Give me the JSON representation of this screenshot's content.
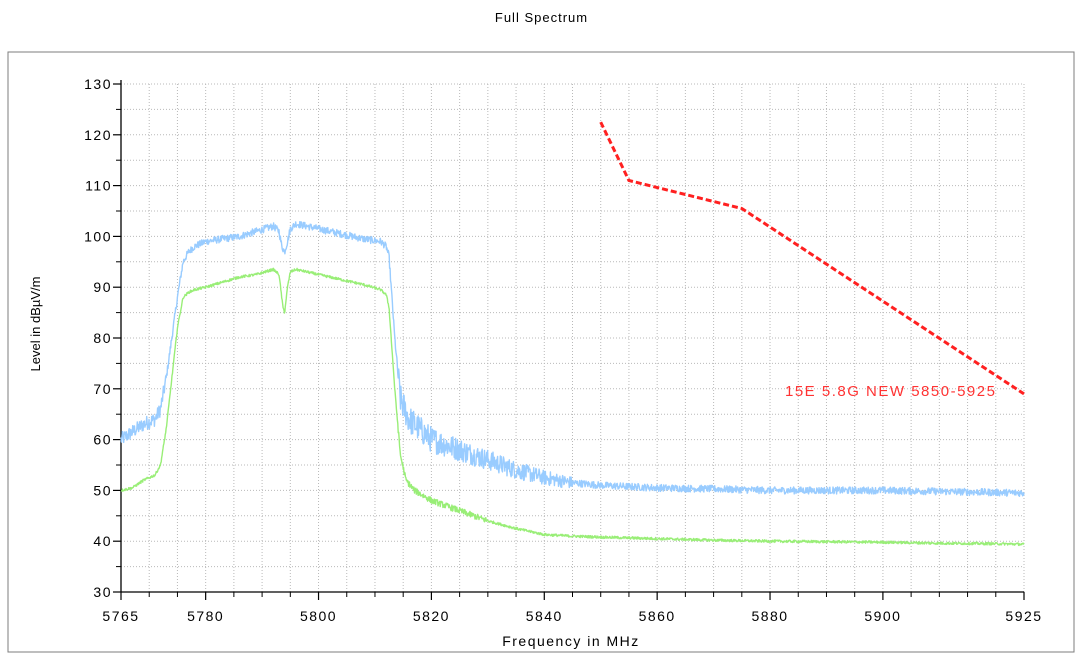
{
  "chart_data": {
    "type": "line",
    "title": "Full Spectrum",
    "xlabel": "Frequency in MHz",
    "ylabel": "Level in dBµV/m",
    "xlim": [
      5765,
      5925
    ],
    "ylim": [
      30,
      130
    ],
    "x_ticks": [
      5765,
      5780,
      5800,
      5820,
      5840,
      5860,
      5880,
      5900,
      5925
    ],
    "y_ticks": [
      30,
      40,
      50,
      60,
      70,
      80,
      90,
      100,
      110,
      120,
      130
    ],
    "grid": true,
    "series": [
      {
        "color": "#99ccff",
        "x": [
          5765,
          5767,
          5769,
          5771,
          5772,
          5773,
          5774,
          5775,
          5776,
          5777,
          5778,
          5780,
          5783,
          5786,
          5789,
          5792,
          5793,
          5793.5,
          5794,
          5794.5,
          5795,
          5796,
          5800,
          5804,
          5808,
          5811,
          5812,
          5812.5,
          5813.5,
          5814.5,
          5816,
          5818,
          5820,
          5825,
          5830,
          5835,
          5840,
          5845,
          5850,
          5860,
          5870,
          5880,
          5890,
          5900,
          5910,
          5920,
          5925
        ],
        "y": [
          60,
          61.5,
          63,
          64,
          66,
          72,
          80,
          88,
          95,
          97,
          98,
          99,
          99.5,
          100,
          101,
          102,
          101,
          98,
          97,
          99,
          101.5,
          102.5,
          101.5,
          100.5,
          99.5,
          99,
          98,
          96,
          80,
          68,
          64,
          62,
          60,
          58,
          56,
          54,
          52.5,
          51.5,
          51,
          50.5,
          50.3,
          50,
          50,
          50,
          49.8,
          49.6,
          49.5
        ]
      },
      {
        "color": "#99ee77",
        "x": [
          5765,
          5767,
          5769,
          5771,
          5772,
          5773,
          5774,
          5775,
          5776,
          5777,
          5778,
          5780,
          5783,
          5786,
          5789,
          5792,
          5793,
          5793.7,
          5794,
          5794.5,
          5795,
          5796,
          5800,
          5804,
          5808,
          5811,
          5812,
          5812.5,
          5813.5,
          5814.5,
          5815.5,
          5817,
          5820,
          5825,
          5830,
          5835,
          5840,
          5845,
          5850,
          5860,
          5870,
          5880,
          5890,
          5900,
          5910,
          5920,
          5925
        ],
        "y": [
          50,
          50.5,
          52,
          53,
          55,
          62,
          72,
          82,
          88,
          89,
          89.5,
          90,
          91,
          92,
          92.5,
          93.5,
          92.5,
          86,
          85,
          90,
          93,
          93.5,
          92.5,
          91.5,
          90.5,
          89.5,
          88.5,
          86,
          70,
          57,
          52,
          50,
          48,
          46,
          44,
          42.5,
          41.3,
          41,
          40.8,
          40.5,
          40.2,
          40,
          39.9,
          39.8,
          39.6,
          39.5,
          39.4
        ]
      }
    ],
    "limit_line": {
      "label": "15E 5.8G NEW 5850-5925",
      "color": "#ff2020",
      "style": "dashed",
      "x": [
        5850,
        5855,
        5875,
        5925
      ],
      "y": [
        122.5,
        111,
        105.5,
        69
      ]
    }
  }
}
